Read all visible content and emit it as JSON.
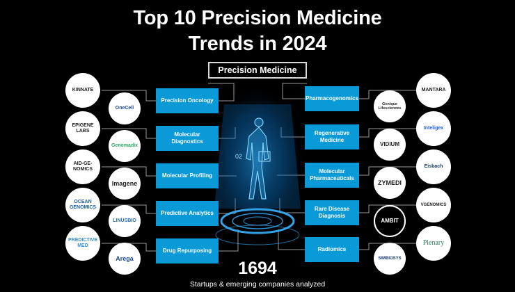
{
  "title_line1": "Top 10 Precision Medicine",
  "title_line2": "Trends in 2024",
  "center_label": "Precision Medicine",
  "hologram_code": "02",
  "trends_left": [
    "Precision Oncology",
    "Molecular Diagnostics",
    "Molecular Profiling",
    "Predictive Analytics",
    "Drug Repurposing"
  ],
  "trends_right": [
    "Pharmacogenomics",
    "Regenerative Medicine",
    "Molecular Pharmaceuticals",
    "Rare Disease Diagnosis",
    "Radiomics"
  ],
  "logos_outer_left": [
    "KINNATE",
    "EPIGENE LABS",
    "AID-GE-NOMICS",
    "OCEAN GENOMICS",
    "PREDICTIVE MED"
  ],
  "logos_inner_left": [
    "OneCell",
    "Genomadix",
    "Imagene",
    "LINUSBIO",
    "Arega"
  ],
  "logos_inner_right": [
    "Genique Lifesciences",
    "VIDIUM",
    "ZYMEDI",
    "AMBIT",
    "SIMBIOSYS"
  ],
  "logos_outer_right": [
    "MANTARA",
    "Inteligex",
    "Eisbach",
    "VGENOMICS",
    "Plenary"
  ],
  "stat_number": "1694",
  "stat_label": "Startups & emerging companies analyzed",
  "colors": {
    "background": "#000000",
    "trend_box": "#0a9ad8",
    "text": "#ffffff",
    "connector": "#9a9a9a"
  }
}
